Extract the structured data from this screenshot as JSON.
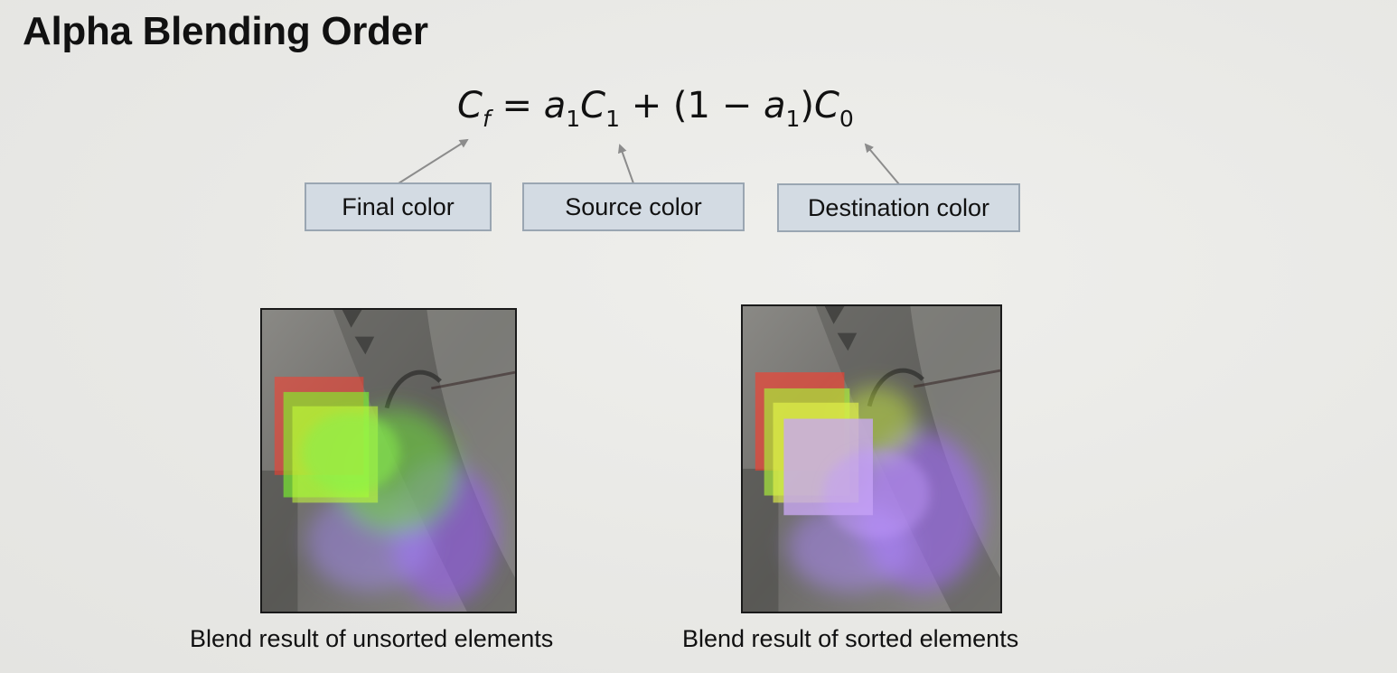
{
  "slide": {
    "title": "Alpha Blending Order"
  },
  "equation": {
    "lhs": "C",
    "lhs_sub": "f",
    "equals": "=",
    "a1": "a",
    "a1_sub": "1",
    "c1": "C",
    "c1_sub": "1",
    "plus": "+",
    "paren_open": "(1 −",
    "a1b": "a",
    "a1b_sub": "1",
    "paren_close": ")",
    "c0": "C",
    "c0_sub": "0"
  },
  "labels": {
    "final": "Final color",
    "source": "Source color",
    "destination": "Destination color"
  },
  "figures": {
    "unsorted_caption": "Blend result of unsorted elements",
    "sorted_caption": "Blend result of sorted elements"
  },
  "colors": {
    "background": "#ebebe8",
    "label_fill": "#d3dbe3",
    "label_border": "#9aa6b2",
    "arrow": "#8c8c8c"
  }
}
